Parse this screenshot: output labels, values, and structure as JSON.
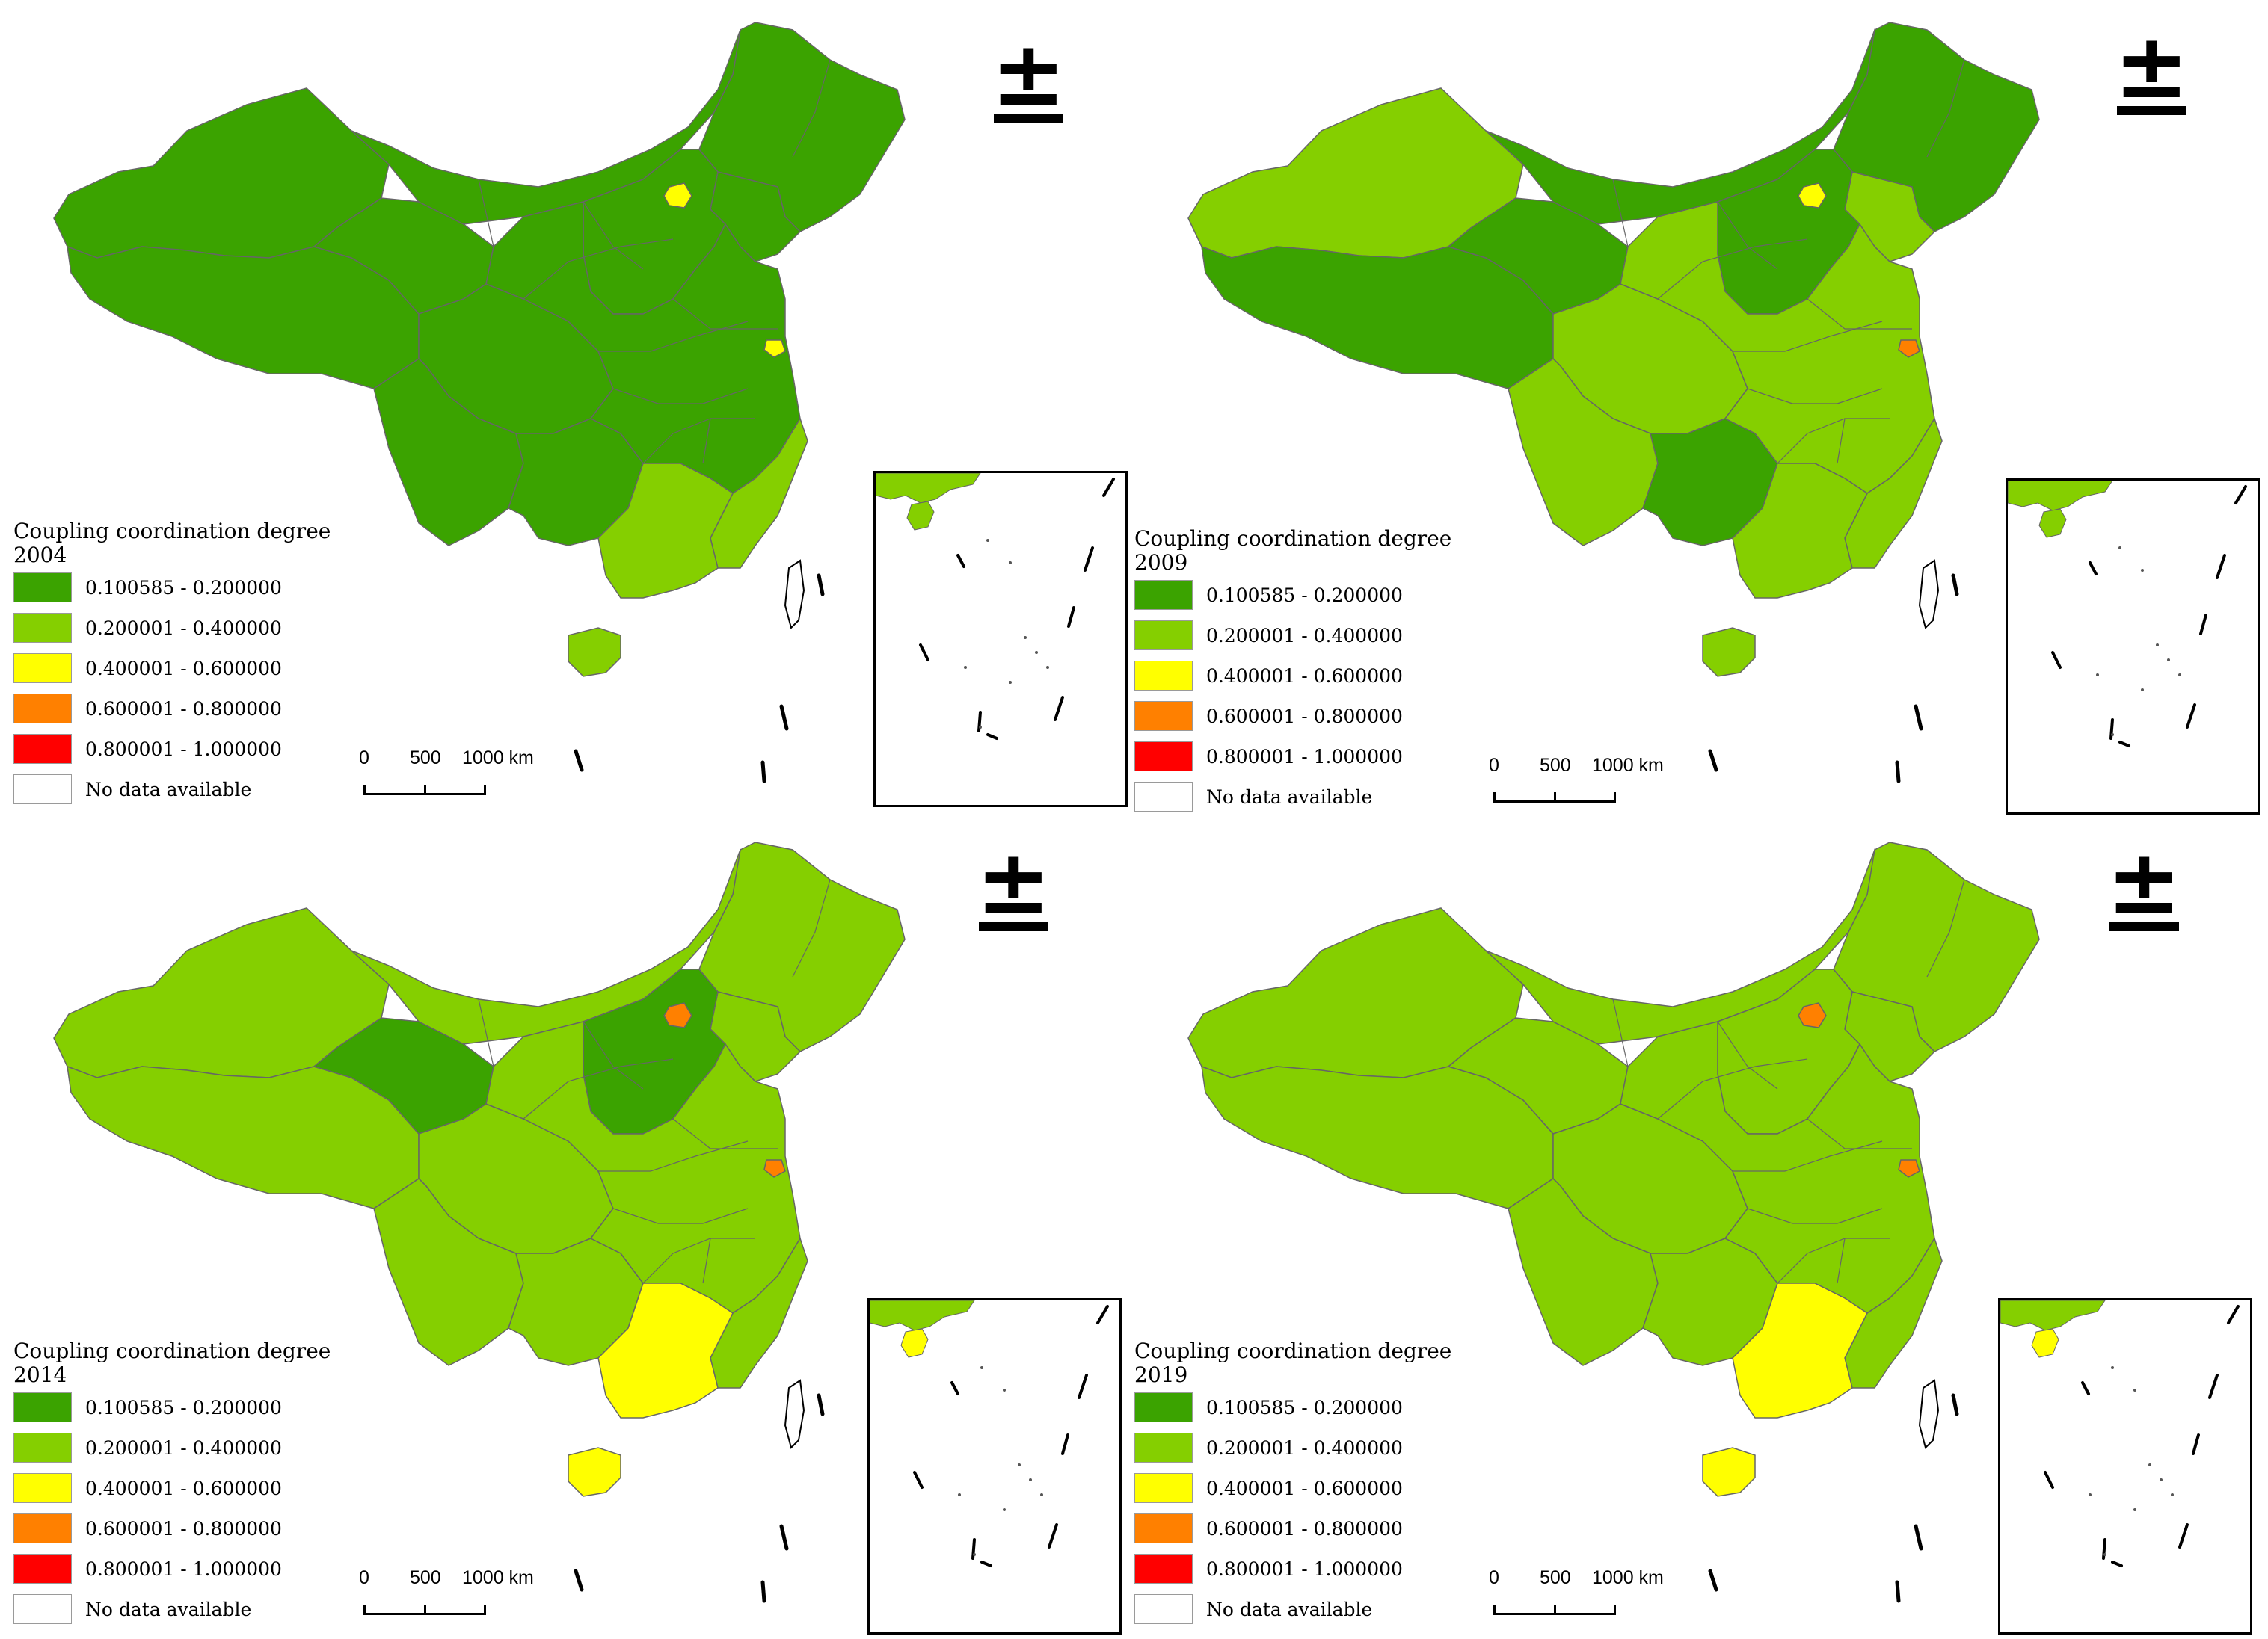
{
  "colors": {
    "class1": "#3ba300",
    "class2": "#85cf00",
    "class3": "#ffff00",
    "class4": "#ff8000",
    "class5": "#ff0000",
    "nodata": "#ffffff",
    "border": "#666666"
  },
  "north_arrow_symbol": "±",
  "legend": {
    "title": "Coupling coordination degree",
    "classes": [
      {
        "label": "0.100585 - 0.200000",
        "color_key": "class1"
      },
      {
        "label": "0.200001 - 0.400000",
        "color_key": "class2"
      },
      {
        "label": "0.400001 - 0.600000",
        "color_key": "class3"
      },
      {
        "label": "0.600001 - 0.800000",
        "color_key": "class4"
      },
      {
        "label": "0.800001 - 1.000000",
        "color_key": "class5"
      },
      {
        "label": "No data available",
        "color_key": "nodata"
      }
    ]
  },
  "scale_bar": {
    "ticks": [
      "0",
      "500",
      "1000 km"
    ]
  },
  "panels": [
    {
      "year": "2004",
      "regions": {
        "northwest": "class1",
        "tibet": "class1",
        "qinghai": "class1",
        "inner_mongolia": "class1",
        "northeast": "class1",
        "liaoning": "class1",
        "hebei_shanxi": "class1",
        "sichuan_chongqing": "class1",
        "yunnan": "class1",
        "guangxi": "class1",
        "central_east": "class1",
        "southeast_coast": "class2",
        "guangdong": "class2",
        "hainan": "class2",
        "beijing": "class3",
        "shanghai": "class3",
        "taiwan": "nodata",
        "inset_hainan": "class2"
      }
    },
    {
      "year": "2009",
      "regions": {
        "northwest": "class2",
        "tibet": "class1",
        "qinghai": "class1",
        "inner_mongolia": "class1",
        "northeast": "class1",
        "liaoning": "class2",
        "hebei_shanxi": "class1",
        "sichuan_chongqing": "class2",
        "yunnan": "class2",
        "guangxi": "class1",
        "central_east": "class2",
        "southeast_coast": "class2",
        "guangdong": "class2",
        "hainan": "class2",
        "beijing": "class3",
        "shanghai": "class4",
        "taiwan": "nodata",
        "inset_hainan": "class2"
      }
    },
    {
      "year": "2014",
      "regions": {
        "northwest": "class2",
        "tibet": "class2",
        "qinghai": "class1",
        "inner_mongolia": "class2",
        "northeast": "class2",
        "liaoning": "class2",
        "hebei_shanxi": "class1",
        "sichuan_chongqing": "class2",
        "yunnan": "class2",
        "guangxi": "class2",
        "central_east": "class2",
        "southeast_coast": "class2",
        "guangdong": "class3",
        "hainan": "class3",
        "beijing": "class4",
        "shanghai": "class4",
        "taiwan": "nodata",
        "inset_hainan": "class3"
      }
    },
    {
      "year": "2019",
      "regions": {
        "northwest": "class2",
        "tibet": "class2",
        "qinghai": "class2",
        "inner_mongolia": "class2",
        "northeast": "class2",
        "liaoning": "class2",
        "hebei_shanxi": "class2",
        "sichuan_chongqing": "class2",
        "yunnan": "class2",
        "guangxi": "class2",
        "central_east": "class2",
        "southeast_coast": "class2",
        "guangdong": "class3",
        "hainan": "class3",
        "beijing": "class4",
        "shanghai": "class4",
        "taiwan": "nodata",
        "inset_hainan": "class3"
      }
    }
  ]
}
